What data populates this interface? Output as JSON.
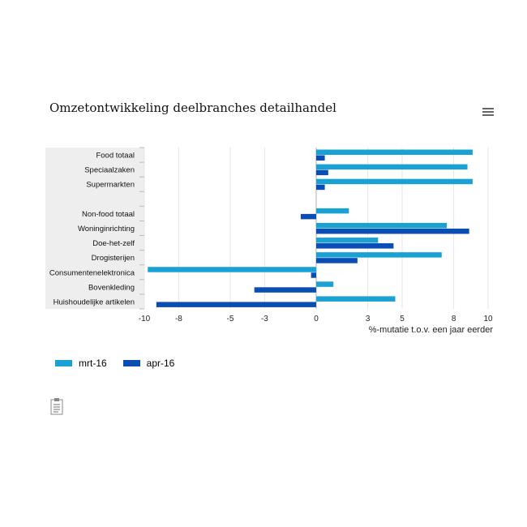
{
  "title": "Omzetontwikkeling deelbranches detailhandel",
  "menu_icon": "hamburger-menu-icon",
  "footer_icon": "document-icon",
  "colors": {
    "mrt": "#1aa1d4",
    "apr": "#0a4db3",
    "grid": "#e6e6e6",
    "label_band": "#eeeeee",
    "zero_line": "#b0b0b0"
  },
  "chart_data": {
    "type": "bar",
    "orientation": "horizontal",
    "categories": [
      "Food totaal",
      "Speciaalzaken",
      "Supermarkten",
      "",
      "Non-food totaal",
      "Woninginrichting",
      "Doe-het-zelf",
      "Drogisterijen",
      "Consumentenelektronica",
      "Bovenkleding",
      "Huishoudelijke artikelen"
    ],
    "series": [
      {
        "name": "mrt-16",
        "color": "#1aa1d4",
        "values": [
          9.1,
          8.8,
          9.1,
          null,
          1.9,
          7.6,
          3.6,
          7.3,
          -9.8,
          1.0,
          4.6
        ]
      },
      {
        "name": "apr-16",
        "color": "#0a4db3",
        "values": [
          0.5,
          0.7,
          0.5,
          null,
          -0.9,
          8.9,
          4.5,
          2.4,
          -0.3,
          -3.6,
          -9.3
        ]
      }
    ],
    "xlabel": "%-mutatie t.o.v. een jaar eerder",
    "xlim": [
      -10,
      10
    ],
    "xticks": [
      -10,
      -8,
      -5,
      -3,
      0,
      3,
      5,
      8,
      10
    ],
    "grid": true,
    "legend_position": "bottom-left"
  }
}
